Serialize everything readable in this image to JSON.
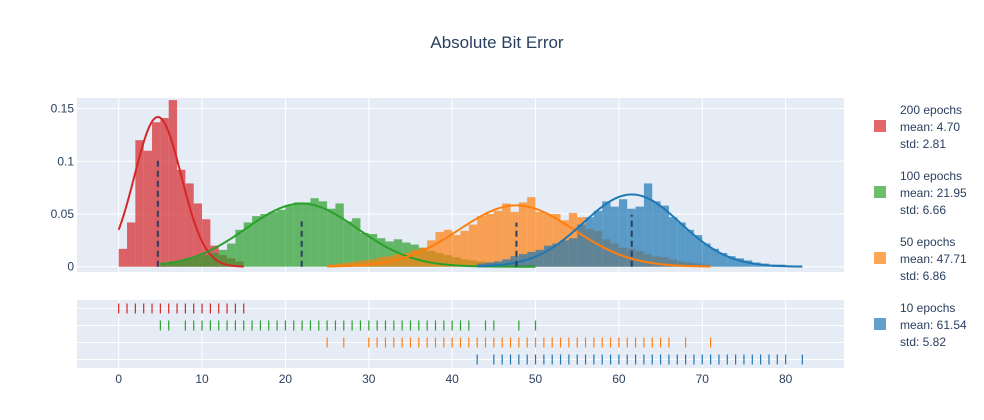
{
  "chart_data": {
    "type": "histogram",
    "title": "Absolute Bit Error",
    "xlabel": "",
    "ylabel": "",
    "xlim": [
      -5,
      87
    ],
    "ylim": [
      -0.005,
      0.16
    ],
    "x_ticks": [
      0,
      10,
      20,
      30,
      40,
      50,
      60,
      70,
      80
    ],
    "x_tick_labels": [
      "0",
      "10",
      "20",
      "30",
      "40",
      "50",
      "60",
      "70",
      "80"
    ],
    "y_ticks": [
      0,
      0.05,
      0.1,
      0.15
    ],
    "y_tick_labels": [
      "0",
      "0.05",
      "0.1",
      "0.15"
    ],
    "grid": true,
    "legend_position": "right",
    "bin_width": 1,
    "series": [
      {
        "name": "200 epochs",
        "legend_lines": [
          "200 epochs",
          "mean: 4.70",
          "std: 2.81"
        ],
        "color": "#d62728",
        "mean": 4.7,
        "std": 2.81,
        "hist": [
          [
            0,
            0.017
          ],
          [
            1,
            0.042
          ],
          [
            2,
            0.12
          ],
          [
            3,
            0.11
          ],
          [
            4,
            0.137
          ],
          [
            5,
            0.141
          ],
          [
            6,
            0.158
          ],
          [
            7,
            0.092
          ],
          [
            8,
            0.079
          ],
          [
            9,
            0.06
          ],
          [
            10,
            0.045
          ],
          [
            11,
            0.02
          ],
          [
            12,
            0.011
          ],
          [
            13,
            0.008
          ],
          [
            14,
            0.005
          ]
        ],
        "rug": [
          0,
          1,
          2,
          3,
          4,
          5,
          6,
          7,
          8,
          9,
          10,
          11,
          12,
          13,
          14,
          15
        ]
      },
      {
        "name": "100 epochs",
        "legend_lines": [
          "100 epochs",
          "mean: 21.95",
          "std: 6.66"
        ],
        "color": "#2ca02c",
        "mean": 21.95,
        "std": 6.66,
        "hist": [
          [
            5,
            0.004
          ],
          [
            6,
            0.005
          ],
          [
            7,
            0.006
          ],
          [
            8,
            0.008
          ],
          [
            9,
            0.01
          ],
          [
            10,
            0.011
          ],
          [
            11,
            0.013
          ],
          [
            12,
            0.016
          ],
          [
            13,
            0.022
          ],
          [
            14,
            0.035
          ],
          [
            15,
            0.042
          ],
          [
            16,
            0.048
          ],
          [
            17,
            0.05
          ],
          [
            18,
            0.052
          ],
          [
            19,
            0.054
          ],
          [
            20,
            0.058
          ],
          [
            21,
            0.061
          ],
          [
            22,
            0.061
          ],
          [
            23,
            0.065
          ],
          [
            24,
            0.062
          ],
          [
            25,
            0.055
          ],
          [
            26,
            0.06
          ],
          [
            27,
            0.043
          ],
          [
            28,
            0.046
          ],
          [
            29,
            0.032
          ],
          [
            30,
            0.031
          ],
          [
            31,
            0.027
          ],
          [
            32,
            0.024
          ],
          [
            33,
            0.026
          ],
          [
            34,
            0.023
          ],
          [
            35,
            0.021
          ],
          [
            36,
            0.018
          ],
          [
            37,
            0.015
          ],
          [
            38,
            0.013
          ],
          [
            39,
            0.011
          ],
          [
            40,
            0.009
          ],
          [
            41,
            0.007
          ],
          [
            42,
            0.006
          ],
          [
            43,
            0.005
          ],
          [
            44,
            0.004
          ],
          [
            45,
            0.003
          ],
          [
            46,
            0.003
          ],
          [
            47,
            0.002
          ],
          [
            48,
            0.002
          ],
          [
            49,
            0.002
          ]
        ],
        "rug": [
          5,
          6,
          8,
          9,
          10,
          11,
          12,
          13,
          14,
          15,
          16,
          17,
          18,
          19,
          20,
          21,
          22,
          23,
          24,
          25,
          26,
          27,
          28,
          29,
          30,
          31,
          32,
          33,
          34,
          35,
          36,
          37,
          38,
          39,
          40,
          41,
          42,
          44,
          45,
          48,
          50
        ]
      },
      {
        "name": "50 epochs",
        "legend_lines": [
          "50 epochs",
          "mean: 47.71",
          "std: 6.86"
        ],
        "color": "#ff7f0e",
        "mean": 47.71,
        "std": 6.86,
        "hist": [
          [
            25,
            0.002
          ],
          [
            26,
            0.003
          ],
          [
            27,
            0.004
          ],
          [
            28,
            0.005
          ],
          [
            29,
            0.006
          ],
          [
            30,
            0.007
          ],
          [
            31,
            0.009
          ],
          [
            32,
            0.01
          ],
          [
            33,
            0.012
          ],
          [
            34,
            0.013
          ],
          [
            35,
            0.016
          ],
          [
            36,
            0.018
          ],
          [
            37,
            0.025
          ],
          [
            38,
            0.033
          ],
          [
            39,
            0.035
          ],
          [
            40,
            0.03
          ],
          [
            41,
            0.034
          ],
          [
            42,
            0.04
          ],
          [
            43,
            0.048
          ],
          [
            44,
            0.05
          ],
          [
            45,
            0.053
          ],
          [
            46,
            0.06
          ],
          [
            47,
            0.052
          ],
          [
            48,
            0.061
          ],
          [
            49,
            0.066
          ],
          [
            50,
            0.052
          ],
          [
            51,
            0.05
          ],
          [
            52,
            0.05
          ],
          [
            53,
            0.044
          ],
          [
            54,
            0.051
          ],
          [
            55,
            0.047
          ],
          [
            56,
            0.036
          ],
          [
            57,
            0.034
          ],
          [
            58,
            0.026
          ],
          [
            59,
            0.022
          ],
          [
            60,
            0.018
          ],
          [
            61,
            0.017
          ],
          [
            62,
            0.015
          ],
          [
            63,
            0.012
          ],
          [
            64,
            0.01
          ],
          [
            65,
            0.009
          ],
          [
            66,
            0.007
          ],
          [
            67,
            0.005
          ],
          [
            68,
            0.004
          ],
          [
            69,
            0.003
          ],
          [
            70,
            0.002
          ]
        ],
        "rug": [
          25,
          27,
          30,
          31,
          32,
          33,
          34,
          35,
          36,
          37,
          38,
          39,
          40,
          41,
          42,
          43,
          44,
          45,
          46,
          47,
          48,
          49,
          50,
          51,
          52,
          53,
          54,
          55,
          56,
          57,
          58,
          59,
          60,
          61,
          62,
          63,
          64,
          65,
          66,
          68,
          71
        ]
      },
      {
        "name": "10 epochs",
        "legend_lines": [
          "10 epochs",
          "mean: 61.54",
          "std: 5.82"
        ],
        "color": "#1f77b4",
        "mean": 61.54,
        "std": 5.82,
        "hist": [
          [
            43,
            0.003
          ],
          [
            44,
            0.004
          ],
          [
            45,
            0.005
          ],
          [
            46,
            0.007
          ],
          [
            47,
            0.01
          ],
          [
            48,
            0.012
          ],
          [
            49,
            0.014
          ],
          [
            50,
            0.016
          ],
          [
            51,
            0.02
          ],
          [
            52,
            0.022
          ],
          [
            53,
            0.025
          ],
          [
            54,
            0.027
          ],
          [
            55,
            0.04
          ],
          [
            56,
            0.047
          ],
          [
            57,
            0.053
          ],
          [
            58,
            0.062
          ],
          [
            59,
            0.057
          ],
          [
            60,
            0.064
          ],
          [
            61,
            0.055
          ],
          [
            62,
            0.057
          ],
          [
            63,
            0.079
          ],
          [
            64,
            0.062
          ],
          [
            65,
            0.058
          ],
          [
            66,
            0.047
          ],
          [
            67,
            0.042
          ],
          [
            68,
            0.035
          ],
          [
            69,
            0.03
          ],
          [
            70,
            0.022
          ],
          [
            71,
            0.017
          ],
          [
            72,
            0.013
          ],
          [
            73,
            0.01
          ],
          [
            74,
            0.008
          ],
          [
            75,
            0.006
          ],
          [
            76,
            0.004
          ],
          [
            77,
            0.003
          ],
          [
            78,
            0.002
          ],
          [
            79,
            0.002
          ],
          [
            80,
            0.001
          ],
          [
            81,
            0.001
          ]
        ],
        "rug": [
          43,
          45,
          46,
          47,
          48,
          49,
          50,
          51,
          52,
          53,
          54,
          55,
          56,
          57,
          58,
          59,
          60,
          61,
          62,
          63,
          64,
          65,
          66,
          67,
          68,
          69,
          70,
          71,
          72,
          73,
          74,
          75,
          76,
          77,
          78,
          79,
          80,
          82
        ]
      }
    ]
  }
}
